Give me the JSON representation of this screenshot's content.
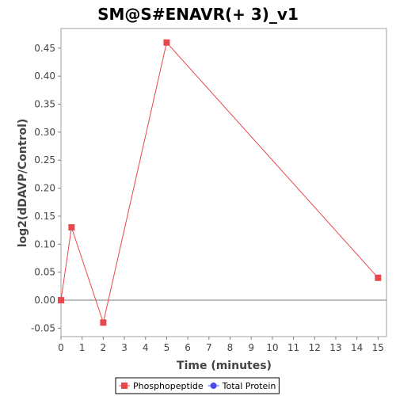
{
  "chart_data": {
    "type": "line",
    "title": "SM@S#ENAVR(+ 3)_v1",
    "xlabel": "Time (minutes)",
    "ylabel": "log2(dDAVP/Control)",
    "xlim": [
      0,
      15.4
    ],
    "ylim": [
      -0.065,
      0.485
    ],
    "xticks": [
      0,
      1,
      2,
      3,
      4,
      5,
      6,
      7,
      8,
      9,
      10,
      11,
      12,
      13,
      14,
      15
    ],
    "yticks": [
      -0.05,
      0.0,
      0.05,
      0.1,
      0.15,
      0.2,
      0.25,
      0.3,
      0.35,
      0.4,
      0.45
    ],
    "ytick_labels": [
      "-0.05",
      "0.00",
      "0.05",
      "0.10",
      "0.15",
      "0.20",
      "0.25",
      "0.30",
      "0.35",
      "0.40",
      "0.45"
    ],
    "grid": false,
    "zero_line": true,
    "legend_position": "bottom",
    "series": [
      {
        "name": "Phosphopeptide",
        "color": "#e8474d",
        "marker": "square",
        "x": [
          0,
          0.5,
          2,
          5,
          15
        ],
        "y": [
          0.0,
          0.13,
          -0.04,
          0.46,
          0.04
        ]
      },
      {
        "name": "Total Protein",
        "color": "#4a4af0",
        "marker": "circle",
        "x": [],
        "y": []
      }
    ]
  }
}
